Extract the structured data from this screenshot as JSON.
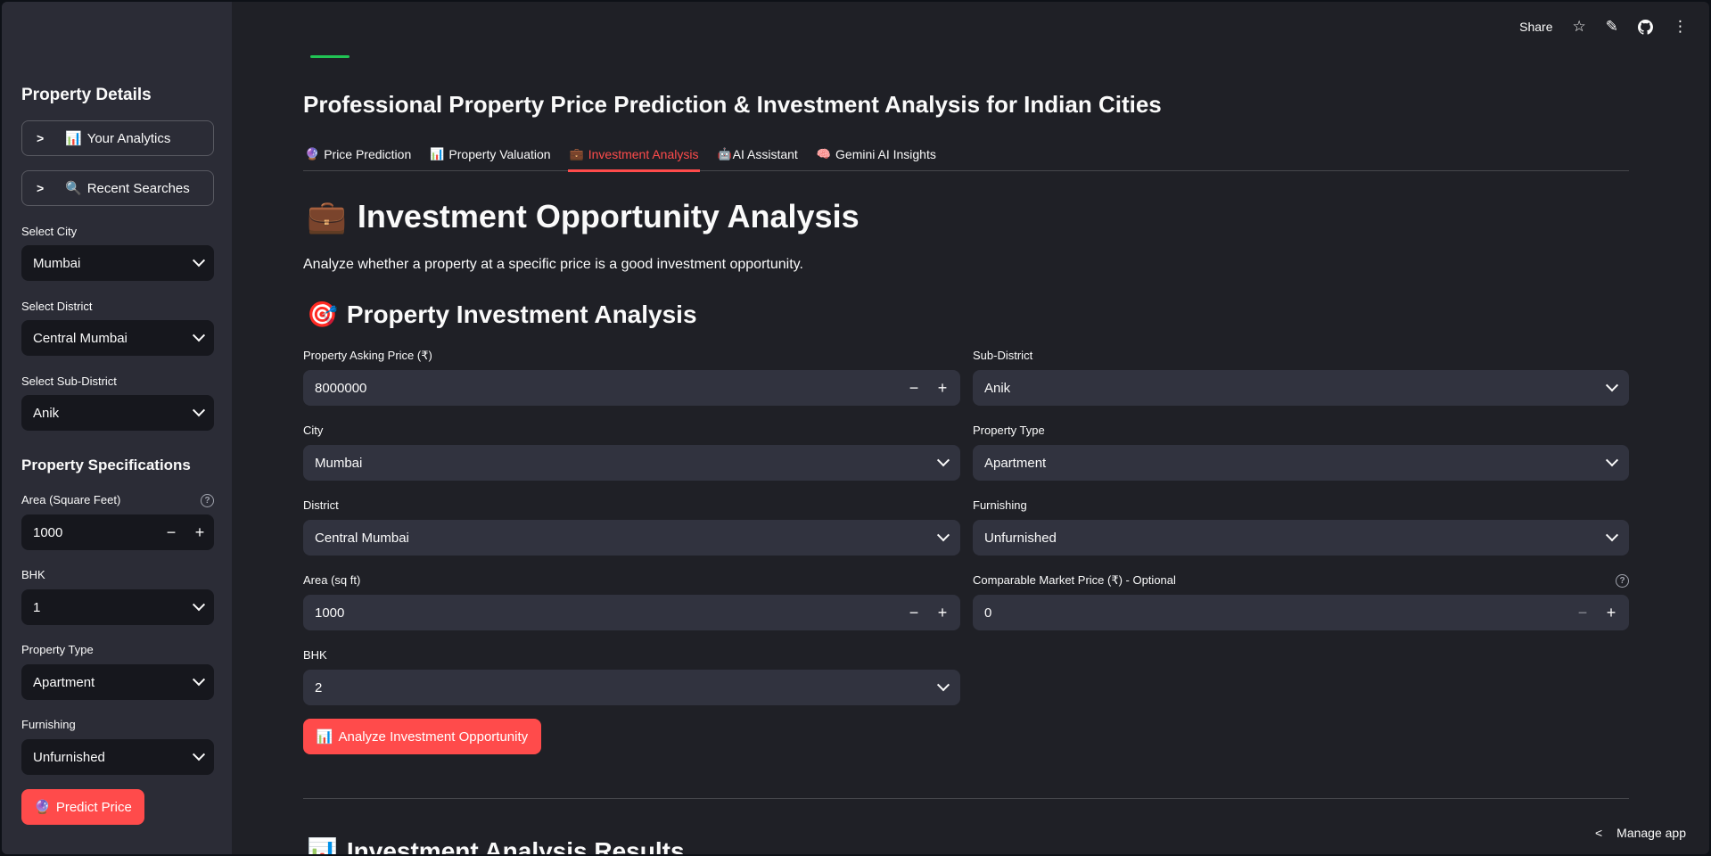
{
  "sidebar": {
    "property_details_title": "Property Details",
    "expanders": [
      {
        "icon": "📊",
        "label": "Your Analytics"
      },
      {
        "icon": "🔍",
        "label": "Recent Searches"
      }
    ],
    "select_city": {
      "label": "Select City",
      "value": "Mumbai"
    },
    "select_district": {
      "label": "Select District",
      "value": "Central Mumbai"
    },
    "select_subdistrict": {
      "label": "Select Sub-District",
      "value": "Anik"
    },
    "specs_title": "Property Specifications",
    "area": {
      "label": "Area (Square Feet)",
      "value": "1000"
    },
    "bhk": {
      "label": "BHK",
      "value": "1"
    },
    "property_type": {
      "label": "Property Type",
      "value": "Apartment"
    },
    "furnishing": {
      "label": "Furnishing",
      "value": "Unfurnished"
    },
    "predict_button": {
      "icon": "🔮",
      "label": "Predict Price"
    }
  },
  "topbar": {
    "share": "Share"
  },
  "header": {
    "title": "Professional Property Price Prediction & Investment Analysis for Indian Cities"
  },
  "tabs": [
    {
      "icon": "🔮",
      "label": "Price Prediction"
    },
    {
      "icon": "📊",
      "label": "Property Valuation"
    },
    {
      "icon": "💼",
      "label": "Investment Analysis",
      "active": true
    },
    {
      "icon": "🤖",
      "label": "AI Assistant"
    },
    {
      "icon": "🧠",
      "label": "Gemini AI Insights"
    }
  ],
  "main": {
    "heading_icon": "💼",
    "heading": "Investment Opportunity Analysis",
    "subtitle": "Analyze whether a property at a specific price is a good investment opportunity.",
    "section_icon": "🎯",
    "section_title": "Property Investment Analysis",
    "fields": {
      "asking_price": {
        "label": "Property Asking Price (₹)",
        "value": "8000000"
      },
      "sub_district": {
        "label": "Sub-District",
        "value": "Anik"
      },
      "city": {
        "label": "City",
        "value": "Mumbai"
      },
      "property_type": {
        "label": "Property Type",
        "value": "Apartment"
      },
      "district": {
        "label": "District",
        "value": "Central Mumbai"
      },
      "furnishing": {
        "label": "Furnishing",
        "value": "Unfurnished"
      },
      "area": {
        "label": "Area (sq ft)",
        "value": "1000"
      },
      "comparable_price": {
        "label": "Comparable Market Price (₹) - Optional",
        "value": "0"
      },
      "bhk": {
        "label": "BHK",
        "value": "2"
      }
    },
    "analyze_button": {
      "icon": "📊",
      "label": "Analyze Investment Opportunity"
    },
    "results_icon": "📊",
    "results_title": "Investment Analysis Results"
  },
  "footer": {
    "manage_app": "Manage app"
  }
}
